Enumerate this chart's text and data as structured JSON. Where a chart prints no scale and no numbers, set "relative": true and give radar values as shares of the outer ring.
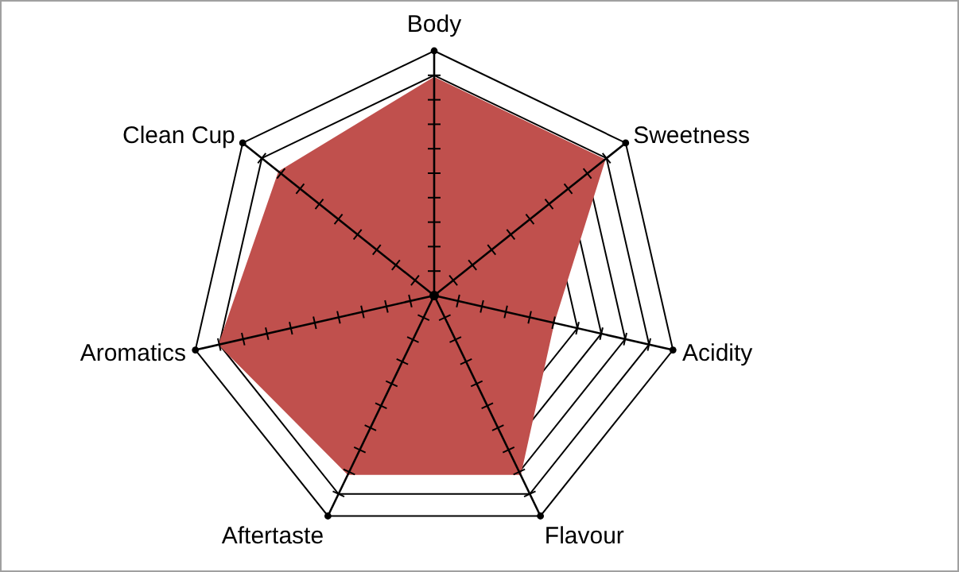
{
  "chart_data": {
    "type": "radar",
    "relative": true,
    "grid": true,
    "marker": "none",
    "categories": [
      "Body",
      "Sweetness",
      "Acidity",
      "Flavour",
      "Aftertaste",
      "Aromatics",
      "Clean Cup"
    ],
    "series": [
      {
        "color": "#c0504d",
        "values": [
          0.89,
          0.89,
          0.5,
          0.81,
          0.81,
          0.9,
          0.81
        ]
      }
    ]
  }
}
